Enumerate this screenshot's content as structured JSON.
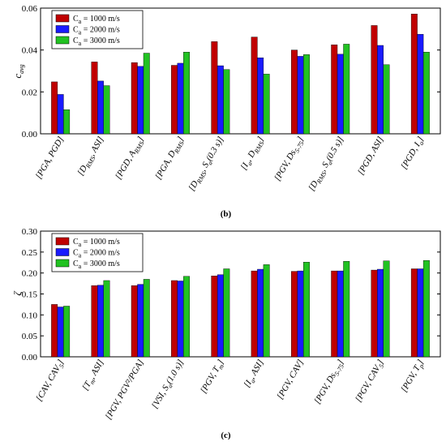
{
  "series_colors": [
    "#c00000",
    "#1a1aff",
    "#22c222"
  ],
  "chart_data": [
    {
      "type": "bar",
      "panel_label": "(b)",
      "ylabel": "c_avg",
      "ylim": [
        0,
        0.06
      ],
      "yticks": [
        "0.00",
        "0.02",
        "0.04",
        "0.06"
      ],
      "legend_position": "top-left",
      "grid": false,
      "categories": [
        "[PGA, PGD]",
        "[D_RMS, ASI]",
        "[PGD, A_RMS]",
        "[PGA, D_RMS]",
        "[D_RMS, S_a(0.3 s)]",
        "[I_a, D_RMS]",
        "[PGV, Ds_5-75]",
        "[D_RMS, S_a(0.5 s)]",
        "[PGD, ASI]",
        "[PGD, I_a]"
      ],
      "series": [
        {
          "name": "C_a = 1000 m/s",
          "values": [
            0.0248,
            0.0343,
            0.034,
            0.0327,
            0.044,
            0.0462,
            0.04,
            0.0425,
            0.0517,
            0.0572
          ]
        },
        {
          "name": "C_a = 2000 m/s",
          "values": [
            0.0188,
            0.0252,
            0.0322,
            0.0337,
            0.0325,
            0.0363,
            0.037,
            0.038,
            0.0422,
            0.0475
          ]
        },
        {
          "name": "C_a = 3000 m/s",
          "values": [
            0.0115,
            0.023,
            0.0385,
            0.039,
            0.0307,
            0.0285,
            0.0378,
            0.0428,
            0.033,
            0.039
          ]
        }
      ]
    },
    {
      "type": "bar",
      "panel_label": "(c)",
      "ylabel": "ζ",
      "ylim": [
        0,
        0.3
      ],
      "yticks": [
        "0.00",
        "0.05",
        "0.10",
        "0.15",
        "0.20",
        "0.25",
        "0.30"
      ],
      "legend_position": "top-left",
      "grid": false,
      "categories": [
        "[CAV, CAV_5]",
        "[T_m, ASI]",
        "[PGV, PGV²/PGA]",
        "[VSI, S_a(1.0 s)]",
        "[PGV, T_m]",
        "[I_a, ASI]",
        "[PGV, CAV]",
        "[PGV, Ds_5-75]",
        "[PGV, CAV_5]",
        "[PGV, T_p]"
      ],
      "series": [
        {
          "name": "C_a = 1000 m/s",
          "values": [
            0.125,
            0.17,
            0.17,
            0.182,
            0.193,
            0.205,
            0.204,
            0.205,
            0.207,
            0.21
          ]
        },
        {
          "name": "C_a = 2000 m/s",
          "values": [
            0.119,
            0.171,
            0.173,
            0.181,
            0.196,
            0.209,
            0.205,
            0.205,
            0.209,
            0.21
          ]
        },
        {
          "name": "C_a = 3000 m/s",
          "values": [
            0.121,
            0.182,
            0.185,
            0.192,
            0.21,
            0.22,
            0.226,
            0.228,
            0.229,
            0.23
          ]
        }
      ]
    }
  ]
}
